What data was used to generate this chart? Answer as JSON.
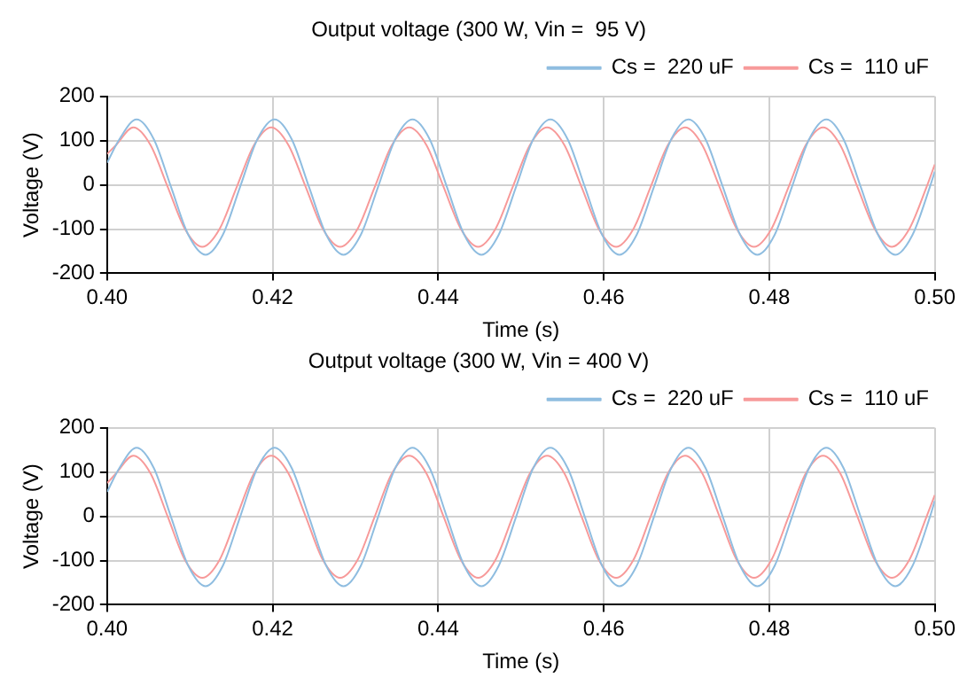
{
  "chart_data": [
    {
      "type": "line",
      "title": "Output voltage (300 W, Vin =  95 V)",
      "xlabel": "Time (s)",
      "ylabel": "Voltage (V)",
      "xlim": [
        0.4,
        0.5
      ],
      "xticks": [
        {
          "value": 0.4,
          "label": "0.40"
        },
        {
          "value": 0.42,
          "label": "0.42"
        },
        {
          "value": 0.44,
          "label": "0.44"
        },
        {
          "value": 0.46,
          "label": "0.46"
        },
        {
          "value": 0.48,
          "label": "0.48"
        },
        {
          "value": 0.5,
          "label": "0.50"
        }
      ],
      "ylim": [
        -200,
        200
      ],
      "yticks": [
        -200,
        -100,
        0,
        100,
        200
      ],
      "grid": true,
      "legend": "top right",
      "marker": "none",
      "line_style": "solid",
      "series": [
        {
          "name": "Cs =  220 uF",
          "color": "#8fbde0",
          "x": [
            0.4,
            0.40148,
            0.40356,
            0.40565,
            0.40773,
            0.40981,
            0.4119,
            0.41398,
            0.41606,
            0.41815,
            0.42023,
            0.42231,
            0.4244,
            0.42648,
            0.42856,
            0.43065,
            0.43273,
            0.43481,
            0.4369,
            0.43898,
            0.44106,
            0.44315,
            0.44523,
            0.44731,
            0.4494,
            0.45148,
            0.45356,
            0.45565,
            0.45773,
            0.45981,
            0.4619,
            0.46398,
            0.46606,
            0.46815,
            0.47023,
            0.47231,
            0.4744,
            0.47648,
            0.47856,
            0.48065,
            0.48273,
            0.48481,
            0.4869,
            0.48898,
            0.49106,
            0.49315,
            0.49523,
            0.49731,
            0.4994,
            0.5
          ],
          "values": [
            50,
            103,
            148,
            103,
            -5,
            -113,
            -158,
            -113,
            -5,
            103,
            148,
            103,
            -5,
            -113,
            -158,
            -113,
            -5,
            103,
            148,
            103,
            -5,
            -113,
            -158,
            -113,
            -5,
            103,
            148,
            103,
            -5,
            -113,
            -158,
            -113,
            -5,
            103,
            148,
            103,
            -5,
            -113,
            -158,
            -113,
            -5,
            103,
            148,
            103,
            -5,
            -113,
            -158,
            -113,
            -5,
            30
          ]
        },
        {
          "name": "Cs =  110 uF",
          "color": "#f79a9a",
          "x": [
            0.4,
            0.40108,
            0.40316,
            0.40525,
            0.40733,
            0.40941,
            0.4115,
            0.41358,
            0.41566,
            0.41775,
            0.41983,
            0.42191,
            0.424,
            0.42608,
            0.42816,
            0.43025,
            0.43233,
            0.43441,
            0.4365,
            0.43858,
            0.44066,
            0.44275,
            0.44483,
            0.44691,
            0.449,
            0.45108,
            0.45316,
            0.45525,
            0.45733,
            0.45941,
            0.4615,
            0.46358,
            0.46566,
            0.46775,
            0.46983,
            0.47191,
            0.474,
            0.47608,
            0.47816,
            0.48025,
            0.48233,
            0.48441,
            0.4865,
            0.48858,
            0.49066,
            0.49275,
            0.49483,
            0.49691,
            0.499,
            0.5
          ],
          "values": [
            70,
            90,
            130,
            90,
            -5,
            -100,
            -140,
            -100,
            -5,
            90,
            130,
            90,
            -5,
            -100,
            -140,
            -100,
            -5,
            90,
            130,
            90,
            -5,
            -100,
            -140,
            -100,
            -5,
            90,
            130,
            90,
            -5,
            -100,
            -140,
            -100,
            -5,
            90,
            130,
            90,
            -5,
            -100,
            -140,
            -100,
            -5,
            90,
            130,
            90,
            -5,
            -100,
            -140,
            -100,
            -5,
            46
          ]
        }
      ]
    },
    {
      "type": "line",
      "title": "Output voltage (300 W, Vin = 400 V)",
      "xlabel": "Time (s)",
      "ylabel": "Voltage (V)",
      "xlim": [
        0.4,
        0.5
      ],
      "xticks": [
        {
          "value": 0.4,
          "label": "0.40"
        },
        {
          "value": 0.42,
          "label": "0.42"
        },
        {
          "value": 0.44,
          "label": "0.44"
        },
        {
          "value": 0.46,
          "label": "0.46"
        },
        {
          "value": 0.48,
          "label": "0.48"
        },
        {
          "value": 0.5,
          "label": "0.50"
        }
      ],
      "ylim": [
        -200,
        200
      ],
      "yticks": [
        -200,
        -100,
        0,
        100,
        200
      ],
      "grid": true,
      "legend": "top right",
      "marker": "none",
      "line_style": "solid",
      "series": [
        {
          "name": "Cs =  220 uF",
          "color": "#8fbde0",
          "x": [
            0.4,
            0.40148,
            0.40356,
            0.40565,
            0.40773,
            0.40981,
            0.4119,
            0.41398,
            0.41606,
            0.41815,
            0.42023,
            0.42231,
            0.4244,
            0.42648,
            0.42856,
            0.43065,
            0.43273,
            0.43481,
            0.4369,
            0.43898,
            0.44106,
            0.44315,
            0.44523,
            0.44731,
            0.4494,
            0.45148,
            0.45356,
            0.45565,
            0.45773,
            0.45981,
            0.4619,
            0.46398,
            0.46606,
            0.46815,
            0.47023,
            0.47231,
            0.4744,
            0.47648,
            0.47856,
            0.48065,
            0.48273,
            0.48481,
            0.4869,
            0.48898,
            0.49106,
            0.49315,
            0.49523,
            0.49731,
            0.4994,
            0.5
          ],
          "values": [
            55,
            109,
            155,
            109,
            -2,
            -112,
            -158,
            -112,
            -2,
            109,
            155,
            109,
            -2,
            -112,
            -158,
            -112,
            -2,
            109,
            155,
            109,
            -2,
            -112,
            -158,
            -112,
            -2,
            109,
            155,
            109,
            -2,
            -112,
            -158,
            -112,
            -2,
            109,
            155,
            109,
            -2,
            -112,
            -158,
            -112,
            -2,
            109,
            155,
            109,
            -2,
            -112,
            -158,
            -112,
            -2,
            35
          ]
        },
        {
          "name": "Cs =  110 uF",
          "color": "#f79a9a",
          "x": [
            0.4,
            0.40108,
            0.40316,
            0.40525,
            0.40733,
            0.40941,
            0.4115,
            0.41358,
            0.41566,
            0.41775,
            0.41983,
            0.42191,
            0.424,
            0.42608,
            0.42816,
            0.43025,
            0.43233,
            0.43441,
            0.4365,
            0.43858,
            0.44066,
            0.44275,
            0.44483,
            0.44691,
            0.449,
            0.45108,
            0.45316,
            0.45525,
            0.45733,
            0.45941,
            0.4615,
            0.46358,
            0.46566,
            0.46775,
            0.46983,
            0.47191,
            0.474,
            0.47608,
            0.47816,
            0.48025,
            0.48233,
            0.48441,
            0.4865,
            0.48858,
            0.49066,
            0.49275,
            0.49483,
            0.49691,
            0.499,
            0.5
          ],
          "values": [
            75,
            97,
            137,
            97,
            -1,
            -99,
            -139,
            -99,
            -1,
            97,
            137,
            97,
            -1,
            -99,
            -139,
            -99,
            -1,
            97,
            137,
            97,
            -1,
            -99,
            -139,
            -99,
            -1,
            97,
            137,
            97,
            -1,
            -99,
            -139,
            -99,
            -1,
            97,
            137,
            97,
            -1,
            -99,
            -139,
            -99,
            -1,
            97,
            137,
            97,
            -1,
            -99,
            -139,
            -99,
            -1,
            48
          ]
        }
      ]
    }
  ]
}
